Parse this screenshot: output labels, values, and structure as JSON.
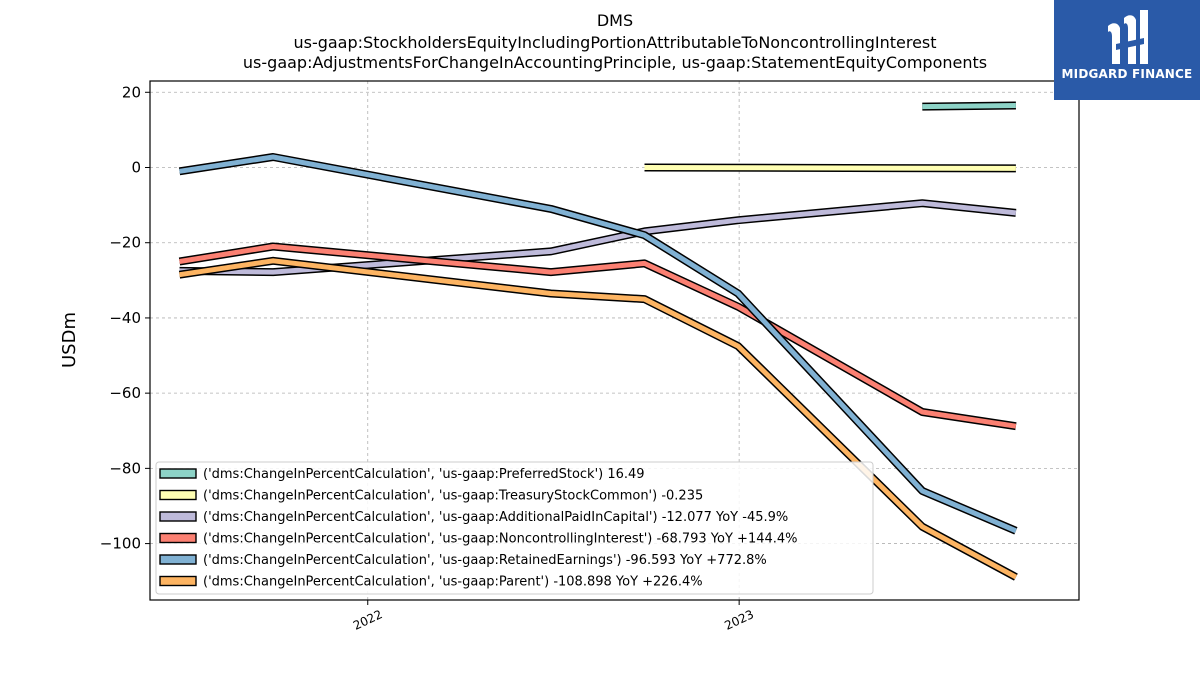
{
  "logo": {
    "text": "MIDGARD FINANCE",
    "icon": "midgard-logo-mark",
    "background": "#2a5aa8"
  },
  "chart_data": {
    "type": "line",
    "title": "DMS",
    "subtitle_lines": [
      "us-gaap:StockholdersEquityIncludingPortionAttributableToNoncontrollingInterest",
      "us-gaap:AdjustmentsForChangeInAccountingPrinciple, us-gaap:StatementEquityComponents"
    ],
    "ylabel": "USDm",
    "xlabel": "",
    "ylim": [
      -115,
      23
    ],
    "xlim": [
      "2021-06-01",
      "2023-12-01"
    ],
    "yticks": [
      20,
      0,
      -20,
      -40,
      -60,
      -80,
      -100
    ],
    "ytick_labels": [
      "20",
      "0",
      "−20",
      "−40",
      "−60",
      "−80",
      "−100"
    ],
    "xticks": [
      {
        "date": "2022-01-01",
        "label": "2022"
      },
      {
        "date": "2023-01-01",
        "label": "2023"
      }
    ],
    "grid": true,
    "legend_position": "lower-left",
    "series": [
      {
        "name": "('dms:ChangeInPercentCalculation', 'us-gaap:PreferredStock') 16.49",
        "color": "#8dd3c7",
        "points": [
          [
            "2023-06-30",
            16.2
          ],
          [
            "2023-09-30",
            16.49
          ]
        ]
      },
      {
        "name": "('dms:ChangeInPercentCalculation', 'us-gaap:TreasuryStockCommon') -0.235",
        "color": "#ffffb3",
        "points": [
          [
            "2022-09-30",
            0.0
          ],
          [
            "2023-09-30",
            -0.235
          ]
        ]
      },
      {
        "name": "('dms:ChangeInPercentCalculation', 'us-gaap:AdditionalPaidInCapital') -12.077 YoY -45.9%",
        "color": "#bebada",
        "points": [
          [
            "2021-06-30",
            -27.5
          ],
          [
            "2021-09-30",
            -27.8
          ],
          [
            "2022-06-30",
            -22.3
          ],
          [
            "2022-09-30",
            -17.0
          ],
          [
            "2022-12-31",
            -14.0
          ],
          [
            "2023-06-30",
            -9.5
          ],
          [
            "2023-09-30",
            -12.077
          ]
        ]
      },
      {
        "name": "('dms:ChangeInPercentCalculation', 'us-gaap:NoncontrollingInterest') -68.793 YoY +144.4%",
        "color": "#fb8072",
        "points": [
          [
            "2021-06-30",
            -25.0
          ],
          [
            "2021-09-30",
            -21.0
          ],
          [
            "2022-06-30",
            -27.8
          ],
          [
            "2022-09-30",
            -25.5
          ],
          [
            "2022-12-31",
            -37.0
          ],
          [
            "2023-06-30",
            -65.0
          ],
          [
            "2023-09-30",
            -68.793
          ]
        ]
      },
      {
        "name": "('dms:ChangeInPercentCalculation', 'us-gaap:RetainedEarnings') -96.593 YoY +772.8%",
        "color": "#80b1d3",
        "points": [
          [
            "2021-06-30",
            -1.0
          ],
          [
            "2021-09-30",
            2.8
          ],
          [
            "2022-06-30",
            -11.0
          ],
          [
            "2022-09-30",
            -18.0
          ],
          [
            "2022-12-31",
            -33.5
          ],
          [
            "2023-06-30",
            -86.0
          ],
          [
            "2023-09-30",
            -96.593
          ]
        ]
      },
      {
        "name": "('dms:ChangeInPercentCalculation', 'us-gaap:Parent') -108.898 YoY +226.4%",
        "color": "#fdb462",
        "points": [
          [
            "2021-06-30",
            -28.5
          ],
          [
            "2021-09-30",
            -24.8
          ],
          [
            "2022-06-30",
            -33.5
          ],
          [
            "2022-09-30",
            -35.0
          ],
          [
            "2022-12-31",
            -47.5
          ],
          [
            "2023-06-30",
            -95.5
          ],
          [
            "2023-09-30",
            -108.898
          ]
        ]
      }
    ]
  }
}
